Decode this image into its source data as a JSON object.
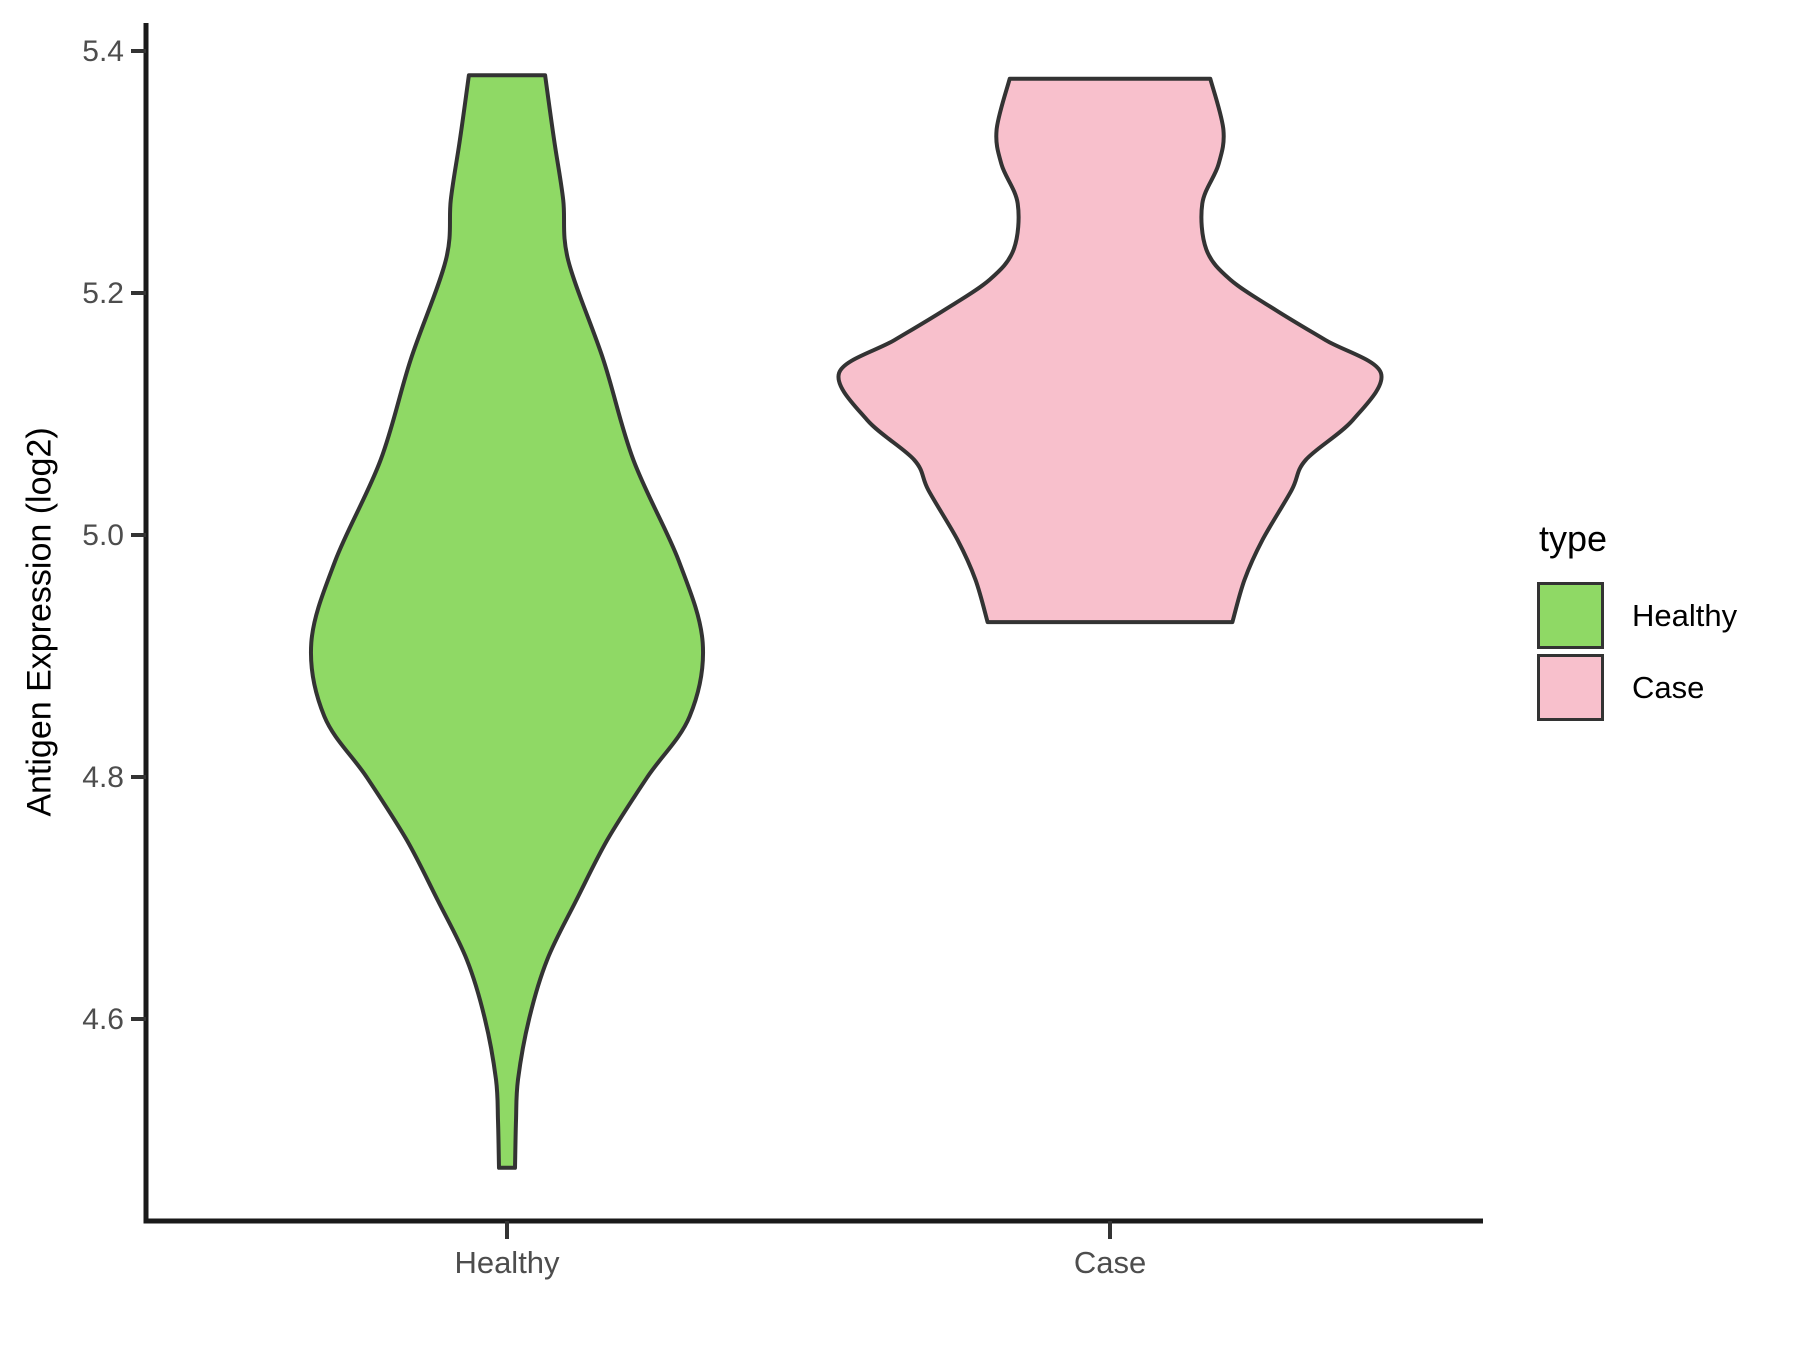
{
  "figure": {
    "background": "#FFFFFF",
    "legend": {
      "title": "type",
      "swatch_border": "#333333",
      "items": [
        {
          "label": "Healthy",
          "fill": "#8FD965"
        },
        {
          "label": "Case",
          "fill": "#F8C0CC"
        }
      ]
    }
  },
  "chart_data": {
    "type": "violin",
    "title": "",
    "xlabel": "",
    "ylabel": "Antigen Expression (log2)",
    "legend_title": "type",
    "categories": [
      "Healthy",
      "Case"
    ],
    "ylim": [
      4.42,
      5.46
    ],
    "yticks": [
      "5.4",
      "5.2",
      "5.0",
      "4.8",
      "4.6"
    ],
    "grid": false,
    "legend_position": "right",
    "axis_color": "#1A1A1A",
    "tick_color": "#333333",
    "tick_label_color": "#4D4D4D",
    "series": [
      {
        "name": "Healthy",
        "fill": "#8FD965",
        "stroke": "#333333",
        "value_range": [
          4.48,
          5.38
        ],
        "widest_at": 4.91,
        "profile": [
          {
            "v": 5.38,
            "w": 0.0632
          },
          {
            "v": 5.326,
            "w": 0.0782
          },
          {
            "v": 5.277,
            "w": 0.0932
          },
          {
            "v": 5.227,
            "w": 0.1015
          },
          {
            "v": 5.145,
            "w": 0.1597
          },
          {
            "v": 5.062,
            "w": 0.2096
          },
          {
            "v": 4.979,
            "w": 0.2845
          },
          {
            "v": 4.911,
            "w": 0.3245
          },
          {
            "v": 4.85,
            "w": 0.3028
          },
          {
            "v": 4.8,
            "w": 0.2329
          },
          {
            "v": 4.748,
            "w": 0.1664
          },
          {
            "v": 4.698,
            "w": 0.1148
          },
          {
            "v": 4.649,
            "w": 0.0666
          },
          {
            "v": 4.6,
            "w": 0.0366
          },
          {
            "v": 4.55,
            "w": 0.0183
          },
          {
            "v": 4.516,
            "w": 0.015
          },
          {
            "v": 4.477,
            "w": 0.0133
          }
        ]
      },
      {
        "name": "Case",
        "fill": "#F8C0CC",
        "stroke": "#333333",
        "value_range": [
          4.93,
          5.38
        ],
        "widest_at": 5.13,
        "profile": [
          {
            "v": 5.377,
            "w": 0.1664
          },
          {
            "v": 5.335,
            "w": 0.188
          },
          {
            "v": 5.306,
            "w": 0.1797
          },
          {
            "v": 5.274,
            "w": 0.1531
          },
          {
            "v": 5.236,
            "w": 0.1597
          },
          {
            "v": 5.211,
            "w": 0.1997
          },
          {
            "v": 5.186,
            "w": 0.2745
          },
          {
            "v": 5.161,
            "w": 0.3577
          },
          {
            "v": 5.134,
            "w": 0.4493
          },
          {
            "v": 5.095,
            "w": 0.4026
          },
          {
            "v": 5.062,
            "w": 0.3245
          },
          {
            "v": 5.037,
            "w": 0.3012
          },
          {
            "v": 4.996,
            "w": 0.2529
          },
          {
            "v": 4.963,
            "w": 0.223
          },
          {
            "v": 4.928,
            "w": 0.203
          }
        ]
      }
    ]
  }
}
